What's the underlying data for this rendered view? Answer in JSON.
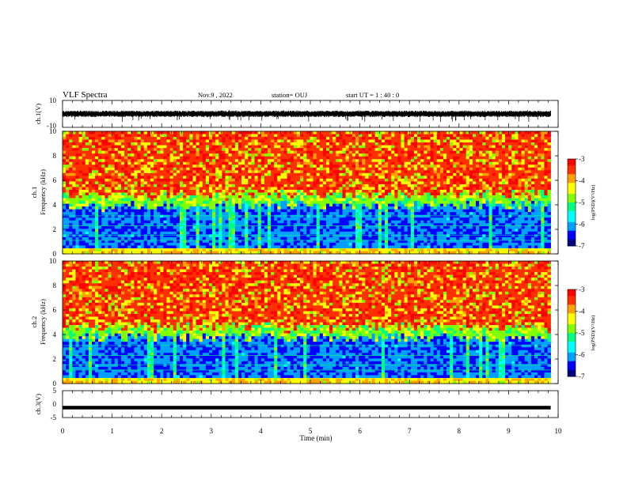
{
  "header": {
    "title": "VLF Spectra",
    "date": "Nov.9 , 2022",
    "station": "station= OUJ",
    "start_ut": "start UT = 1 : 40 : 0"
  },
  "colors": {
    "background": "#ffffff",
    "axis": "#000000",
    "waveform": "#000000",
    "colormap": [
      "#000080",
      "#0000ff",
      "#00a0ff",
      "#00ffff",
      "#00ff80",
      "#80ff00",
      "#ffff00",
      "#ffa000",
      "#ff3000",
      "#ff0000"
    ]
  },
  "chart_data": [
    {
      "type": "line",
      "panel": "ch1-waveform",
      "ylabel": "ch.1(V)",
      "ylim": [
        -10,
        10
      ],
      "yticks": [
        "10",
        "-10"
      ],
      "xlim": [
        0,
        10
      ],
      "description_values": {
        "baseline_v": 0,
        "typical_amplitude_v": 2,
        "spike_min_v": -6,
        "spike_max_v": 3
      }
    },
    {
      "type": "heatmap",
      "panel": "ch1-spectrogram",
      "ylabel_top": "ch.1",
      "ylabel": "Frequency (kHz)",
      "ylim": [
        0,
        10
      ],
      "yticks": [
        "0",
        "2",
        "4",
        "6",
        "8",
        "10"
      ],
      "xlim": [
        0,
        10
      ],
      "data_end_min": 9.85,
      "boundary_khz": 4.8,
      "colorbar": {
        "label": "log(PSD)(V²/Hz)",
        "range": [
          -7,
          -3
        ],
        "ticks": [
          "-3",
          "-4",
          "-5",
          "-6",
          "-7"
        ]
      }
    },
    {
      "type": "heatmap",
      "panel": "ch2-spectrogram",
      "ylabel_top": "ch.2",
      "ylabel": "Frequency (kHz)",
      "ylim": [
        0,
        10
      ],
      "yticks": [
        "0",
        "2",
        "4",
        "6",
        "8",
        "10"
      ],
      "xlim": [
        0,
        10
      ],
      "data_end_min": 9.85,
      "boundary_khz": 4.6,
      "colorbar": {
        "label": "log(PSD)(V²/Hz)",
        "range": [
          -7,
          -3
        ],
        "ticks": [
          "-3",
          "-4",
          "-5",
          "-6",
          "-7"
        ]
      }
    },
    {
      "type": "line",
      "panel": "ch3-waveform",
      "ylabel": "ch.3(V)",
      "ylim": [
        -5,
        5
      ],
      "yticks": [
        "5",
        "0",
        "-5"
      ],
      "xlim": [
        0,
        10
      ],
      "constant_value_v": -1.3
    }
  ],
  "xaxis": {
    "label": "Time (min)",
    "ticks": [
      "0",
      "1",
      "2",
      "3",
      "4",
      "5",
      "6",
      "7",
      "8",
      "9",
      "10"
    ]
  }
}
